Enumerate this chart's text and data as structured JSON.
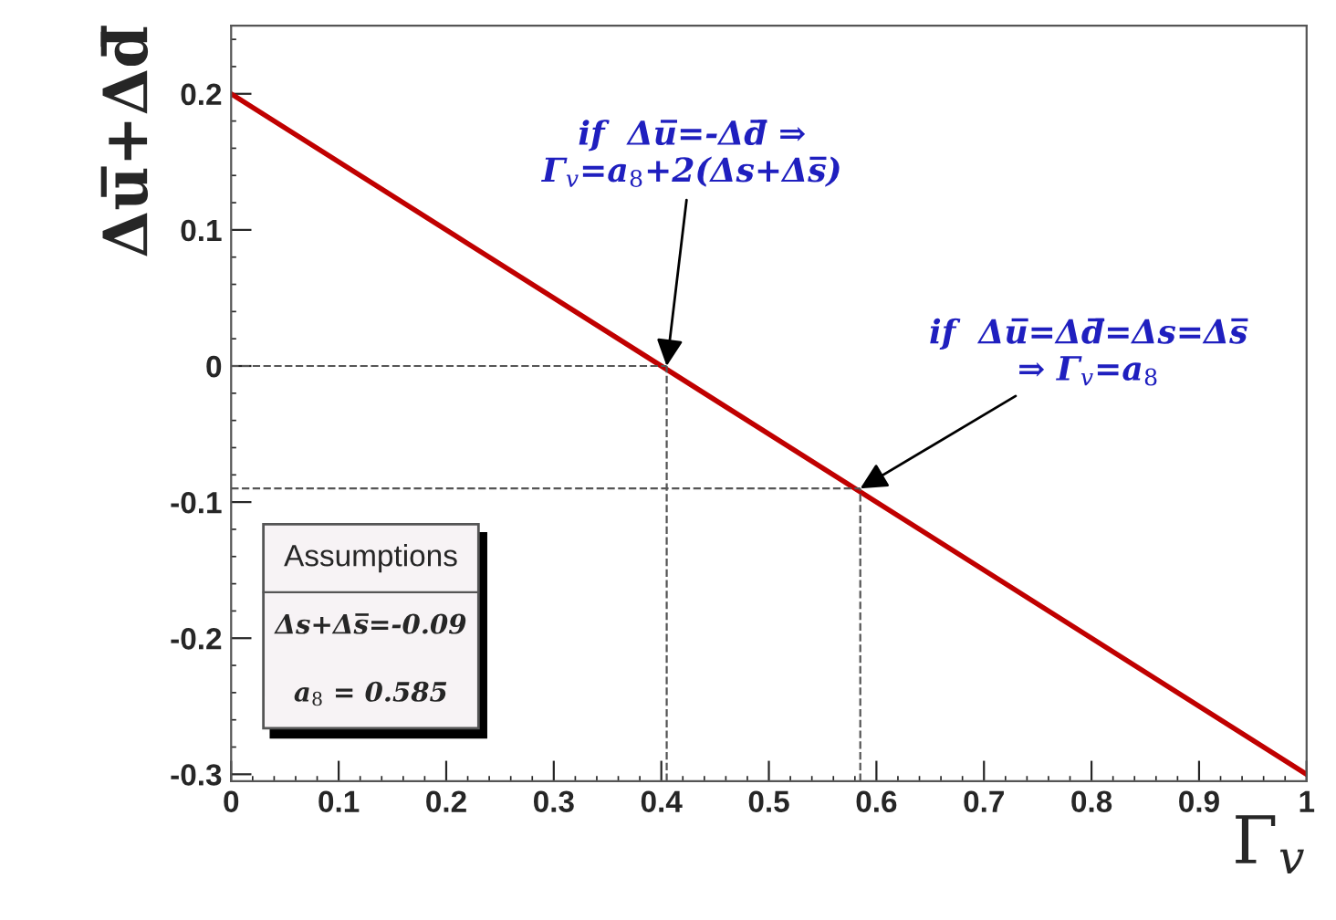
{
  "chart_data": {
    "type": "line",
    "xlabel": "Γ$_{v}$",
    "ylabel": "Δu̅+Δd̅",
    "x": [
      0,
      1
    ],
    "series": [
      {
        "color": "#c00000",
        "values": [
          0.2,
          -0.3
        ]
      }
    ],
    "xlim": [
      0,
      1
    ],
    "xticks": [
      0,
      0.1,
      0.2,
      0.3,
      0.4,
      0.5,
      0.6,
      0.7,
      0.8,
      0.9,
      1
    ],
    "ylim": [
      -0.305,
      0.25
    ],
    "yticks": [
      -0.3,
      -0.2,
      -0.1,
      0,
      0.1,
      0.2
    ],
    "ref_lines": [
      {
        "axis": "x",
        "value": 0.405,
        "line_style": "dashed"
      },
      {
        "axis": "y",
        "value": 0,
        "line_style": "dashed"
      },
      {
        "axis": "x",
        "value": 0.585,
        "line_style": "dashed"
      },
      {
        "axis": "y",
        "value": -0.09,
        "line_style": "dashed"
      }
    ],
    "annotations": [
      {
        "text": "if  Δu̅=-Δd̅ ⇒\nΓ$_{v}$=a$_{8}$+2(Δs+Δs̅)",
        "x": 0.405,
        "y": 0
      },
      {
        "text": "if  Δu̅=Δd̅=Δs=Δs̅\n⇒ Γ$_{v}$=a$_{8}$",
        "x": 0.585,
        "y": -0.09
      },
      "Assumptions",
      "Δs+Δs̅=-0.09",
      "a$_{8}$ = 0.585"
    ],
    "grid": false,
    "legend": false,
    "line_style": "solid",
    "marker": "none"
  }
}
